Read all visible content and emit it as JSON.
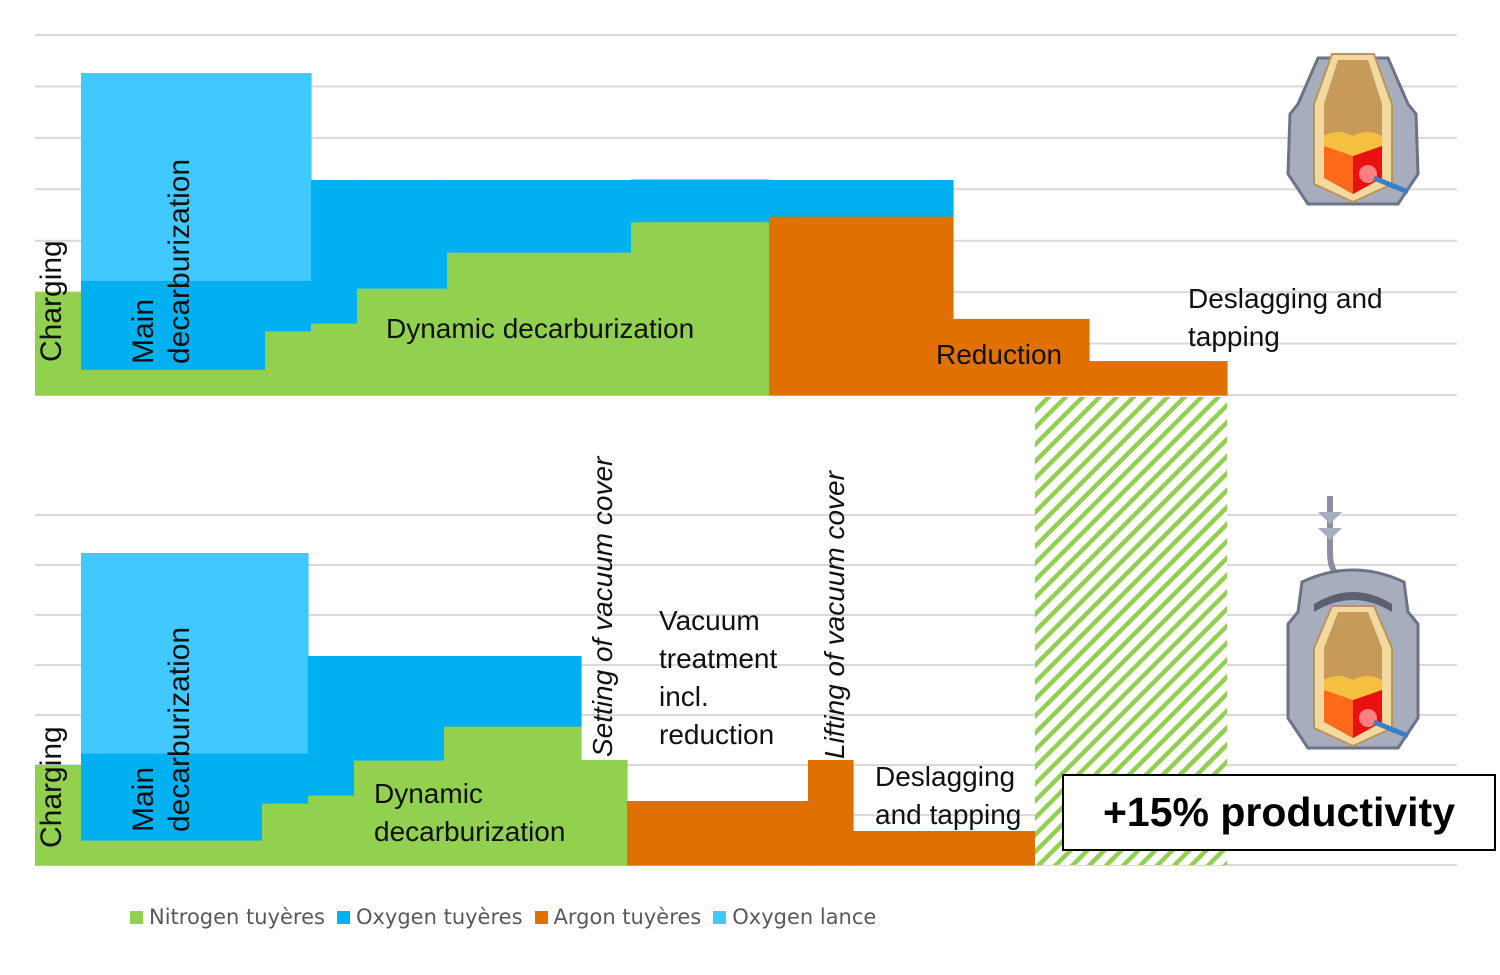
{
  "chart_data": {
    "type": "area",
    "subtype": "stacked-step",
    "xlabel": "",
    "ylabel": "",
    "grid": true,
    "legend_position": "bottom-left",
    "series_colors": {
      "nitrogen": "#92d050",
      "oxygen_tuyeres": "#00b0f0",
      "argon": "#e07000",
      "oxygen_lance": "#40c8ff"
    },
    "legend": [
      {
        "key": "nitrogen",
        "label": "Nitrogen tuyères"
      },
      {
        "key": "oxygen_tuyeres",
        "label": "Oxygen tuyères"
      },
      {
        "key": "argon",
        "label": "Argon tuyères"
      },
      {
        "key": "oxygen_lance",
        "label": "Oxygen lance"
      }
    ],
    "panels": [
      {
        "name": "conventional",
        "ylim": [
          0,
          7
        ],
        "x_end": 119.2,
        "segments": [
          {
            "x0": 0,
            "x1": 4.6,
            "nitrogen": 2.0,
            "oxygen_tuyeres": 0,
            "argon": 0,
            "oxygen_lance": 0
          },
          {
            "x0": 4.6,
            "x1": 23.0,
            "nitrogen": 0.5,
            "oxygen_tuyeres": 1.73,
            "argon": 0,
            "oxygen_lance": 4.03
          },
          {
            "x0": 23.0,
            "x1": 27.6,
            "nitrogen": 1.25,
            "oxygen_tuyeres": 0.98,
            "argon": 0,
            "oxygen_lance": 4.03
          },
          {
            "x0": 27.6,
            "x1": 32.2,
            "nitrogen": 1.4,
            "oxygen_tuyeres": 2.78,
            "argon": 0,
            "oxygen_lance": 0
          },
          {
            "x0": 32.2,
            "x1": 41.2,
            "nitrogen": 2.08,
            "oxygen_tuyeres": 2.1,
            "argon": 0,
            "oxygen_lance": 0
          },
          {
            "x0": 41.2,
            "x1": 59.6,
            "nitrogen": 2.78,
            "oxygen_tuyeres": 1.4,
            "argon": 0,
            "oxygen_lance": 0
          },
          {
            "x0": 59.6,
            "x1": 73.4,
            "nitrogen": 3.37,
            "oxygen_tuyeres": 0.82,
            "argon": 0,
            "oxygen_lance": 0
          },
          {
            "x0": 73.4,
            "x1": 91.8,
            "nitrogen": 0,
            "oxygen_tuyeres": 0.7,
            "argon": 3.48,
            "oxygen_lance": 0
          },
          {
            "x0": 91.8,
            "x1": 105.4,
            "nitrogen": 0,
            "oxygen_tuyeres": 0,
            "argon": 1.48,
            "oxygen_lance": 0
          },
          {
            "x0": 105.4,
            "x1": 119.2,
            "nitrogen": 0,
            "oxygen_tuyeres": 0,
            "argon": 0.66,
            "oxygen_lance": 0
          }
        ],
        "annotations": {
          "charging": "Charging",
          "main_line1": "Main",
          "main_line2": "decarburization",
          "dynamic": "Dynamic decarburization",
          "reduction": "Reduction",
          "deslag_line1": "Deslagging and",
          "deslag_line2": "tapping"
        }
      },
      {
        "name": "vacuum",
        "ylim": [
          0,
          7
        ],
        "x_end": 100.0,
        "segments": [
          {
            "x0": 0,
            "x1": 4.6,
            "nitrogen": 2.0,
            "oxygen_tuyeres": 0,
            "argon": 0,
            "oxygen_lance": 0
          },
          {
            "x0": 4.6,
            "x1": 22.7,
            "nitrogen": 0.5,
            "oxygen_tuyeres": 1.74,
            "argon": 0,
            "oxygen_lance": 4.0
          },
          {
            "x0": 22.7,
            "x1": 27.3,
            "nitrogen": 1.24,
            "oxygen_tuyeres": 1.0,
            "argon": 0,
            "oxygen_lance": 4.0
          },
          {
            "x0": 27.3,
            "x1": 31.9,
            "nitrogen": 1.4,
            "oxygen_tuyeres": 2.78,
            "argon": 0,
            "oxygen_lance": 0
          },
          {
            "x0": 31.9,
            "x1": 40.9,
            "nitrogen": 2.1,
            "oxygen_tuyeres": 2.08,
            "argon": 0,
            "oxygen_lance": 0
          },
          {
            "x0": 40.9,
            "x1": 54.6,
            "nitrogen": 2.78,
            "oxygen_tuyeres": 1.4,
            "argon": 0,
            "oxygen_lance": 0
          },
          {
            "x0": 54.6,
            "x1": 59.2,
            "nitrogen": 2.1,
            "oxygen_tuyeres": 0,
            "argon": 0,
            "oxygen_lance": 0
          },
          {
            "x0": 59.2,
            "x1": 77.3,
            "nitrogen": 0,
            "oxygen_tuyeres": 0,
            "argon": 1.28,
            "oxygen_lance": 0
          },
          {
            "x0": 77.3,
            "x1": 81.8,
            "nitrogen": 0,
            "oxygen_tuyeres": 0,
            "argon": 2.1,
            "oxygen_lance": 0
          },
          {
            "x0": 81.8,
            "x1": 100.0,
            "nitrogen": 0,
            "oxygen_tuyeres": 0,
            "argon": 0.68,
            "oxygen_lance": 0
          }
        ],
        "saved_time": {
          "x0": 100.0,
          "x1": 119.2
        },
        "annotations": {
          "charging": "Charging",
          "main_line1": "Main",
          "main_line2": "decarburization",
          "dynamic_line1": "Dynamic",
          "dynamic_line2": "decarburization",
          "setting": "Setting of vacuum cover",
          "vacuum_line1": "Vacuum",
          "vacuum_line2": "treatment",
          "vacuum_line3": "incl.",
          "vacuum_line4": "reduction",
          "lifting": "Lifting of vacuum cover",
          "deslag_line1": "Deslagging",
          "deslag_line2": "and tapping"
        }
      }
    ],
    "callout": "+15% productivity"
  }
}
